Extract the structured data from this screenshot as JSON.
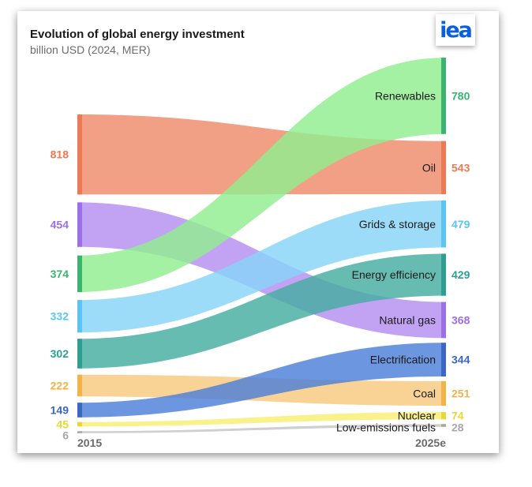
{
  "header": {
    "title": "Evolution of global energy investment",
    "subtitle": "billion USD (2024, MER)",
    "logo_text": "iea"
  },
  "chart_data": {
    "type": "sankey",
    "title": "Evolution of global energy investment",
    "subtitle": "billion USD (2024, MER)",
    "x": [
      "2015",
      "2025e"
    ],
    "series": [
      {
        "name": "Renewables",
        "values": [
          374,
          780
        ],
        "color": "#90ee90",
        "label_color": "#3cb371"
      },
      {
        "name": "Oil",
        "values": [
          818,
          543
        ],
        "color": "#ee8a6a",
        "label_color": "#ee7a55"
      },
      {
        "name": "Grids & storage",
        "values": [
          332,
          479
        ],
        "color": "#87d4f8",
        "label_color": "#5bc4f2"
      },
      {
        "name": "Energy efficiency",
        "values": [
          302,
          429
        ],
        "color": "#45ada1",
        "label_color": "#2f9e92"
      },
      {
        "name": "Natural gas",
        "values": [
          454,
          368
        ],
        "color": "#b48ff0",
        "label_color": "#9b6fe8"
      },
      {
        "name": "Electrification",
        "values": [
          149,
          344
        ],
        "color": "#4d7fd9",
        "label_color": "#3a66c4"
      },
      {
        "name": "Coal",
        "values": [
          222,
          251
        ],
        "color": "#f7c97e",
        "label_color": "#f2b347"
      },
      {
        "name": "Nuclear",
        "values": [
          45,
          74
        ],
        "color": "#f8ef72",
        "label_color": "#e8d73a"
      },
      {
        "name": "Low-emissions fuels",
        "values": [
          6,
          28
        ],
        "color": "#c4c4c4",
        "label_color": "#a8a8a8"
      }
    ],
    "order_2015": [
      "Oil",
      "Natural gas",
      "Renewables",
      "Grids & storage",
      "Energy efficiency",
      "Coal",
      "Electrification",
      "Nuclear",
      "Low-emissions fuels"
    ],
    "order_2025e": [
      "Renewables",
      "Oil",
      "Grids & storage",
      "Energy efficiency",
      "Natural gas",
      "Electrification",
      "Coal",
      "Nuclear",
      "Low-emissions fuels"
    ],
    "legend": "none",
    "grid": false
  }
}
